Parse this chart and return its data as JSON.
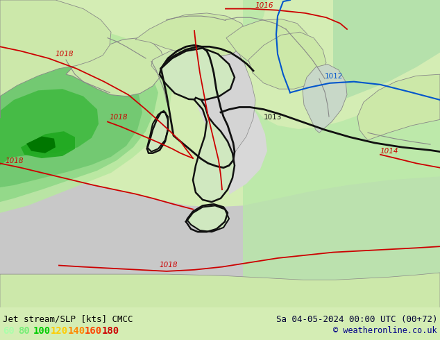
{
  "title_left": "Jet stream/SLP [kts] CMCC",
  "title_right": "Sa 04-05-2024 00:00 UTC (00+72)",
  "copyright": "© weatheronline.co.uk",
  "legend_values": [
    "60",
    "80",
    "100",
    "120",
    "140",
    "160",
    "180"
  ],
  "legend_colors": [
    "#aaffaa",
    "#77ee77",
    "#00cc00",
    "#ffcc00",
    "#ff8800",
    "#ff4400",
    "#cc0000"
  ],
  "bg_land": "#d4edb4",
  "bg_sea_light": "#c0dfc0",
  "bg_sea_gray": "#c8c8c8",
  "jet_green_light": "#c8f0b0",
  "jet_green_mid": "#90d890",
  "jet_green_bright": "#44cc44",
  "jet_green_dark": "#008800",
  "adriatic_gray": "#d0d0d0",
  "italy_fill": "#d8e8d8",
  "land_gray_fill": "#cccccc",
  "bottom_bar": "#d0eeaa",
  "figsize": [
    6.34,
    4.9
  ],
  "dpi": 100
}
